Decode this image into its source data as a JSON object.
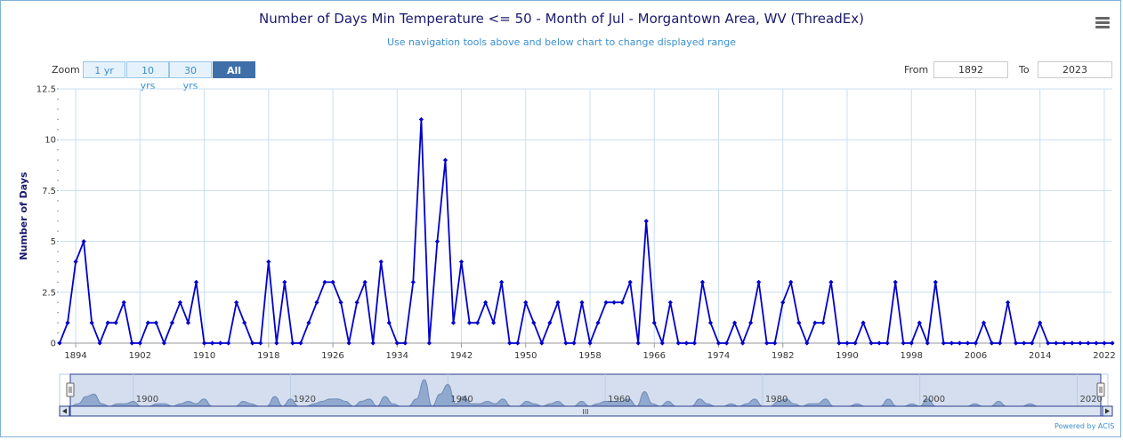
{
  "chart_data": {
    "type": "line",
    "title": "Number of Days Min Temperature <= 50 - Month of Jul - Morgantown Area, WV (ThreadEx)",
    "subtitle": "Use navigation tools above and below chart to change displayed range",
    "xlabel": "",
    "ylabel": "Number of Days",
    "ylim": [
      0,
      12.5
    ],
    "xlim": [
      1892,
      2023
    ],
    "yticks": [
      "0",
      "2.5",
      "5",
      "7.5",
      "10",
      "12.5"
    ],
    "xticks": [
      "1894",
      "1902",
      "1910",
      "1918",
      "1926",
      "1934",
      "1942",
      "1950",
      "1958",
      "1966",
      "1974",
      "1982",
      "1990",
      "1998",
      "2006",
      "2014",
      "2022"
    ],
    "grid": true,
    "color": "#0000cc",
    "x": [
      1892,
      1893,
      1894,
      1895,
      1896,
      1897,
      1898,
      1899,
      1900,
      1901,
      1902,
      1903,
      1904,
      1905,
      1906,
      1907,
      1908,
      1909,
      1910,
      1911,
      1912,
      1913,
      1914,
      1915,
      1916,
      1917,
      1918,
      1919,
      1920,
      1921,
      1922,
      1923,
      1924,
      1925,
      1926,
      1927,
      1928,
      1929,
      1930,
      1931,
      1932,
      1933,
      1934,
      1935,
      1936,
      1937,
      1938,
      1939,
      1940,
      1941,
      1942,
      1943,
      1944,
      1945,
      1946,
      1947,
      1948,
      1949,
      1950,
      1951,
      1952,
      1953,
      1954,
      1955,
      1956,
      1957,
      1958,
      1959,
      1960,
      1961,
      1962,
      1963,
      1964,
      1965,
      1966,
      1967,
      1968,
      1969,
      1970,
      1971,
      1972,
      1973,
      1974,
      1975,
      1976,
      1977,
      1978,
      1979,
      1980,
      1981,
      1982,
      1983,
      1984,
      1985,
      1986,
      1987,
      1988,
      1989,
      1990,
      1991,
      1992,
      1993,
      1994,
      1995,
      1996,
      1997,
      1998,
      1999,
      2000,
      2001,
      2002,
      2003,
      2004,
      2005,
      2006,
      2007,
      2008,
      2009,
      2010,
      2011,
      2012,
      2013,
      2014,
      2015,
      2016,
      2017,
      2018,
      2019,
      2020,
      2021,
      2022,
      2023
    ],
    "values": [
      0,
      1,
      4,
      5,
      1,
      0,
      1,
      1,
      2,
      0,
      0,
      1,
      1,
      0,
      1,
      2,
      1,
      3,
      0,
      0,
      0,
      0,
      2,
      1,
      0,
      0,
      4,
      0,
      3,
      0,
      0,
      1,
      2,
      3,
      3,
      2,
      0,
      2,
      3,
      0,
      4,
      1,
      0,
      0,
      3,
      11,
      0,
      5,
      9,
      1,
      4,
      1,
      1,
      2,
      1,
      3,
      0,
      0,
      2,
      1,
      0,
      1,
      2,
      0,
      0,
      2,
      0,
      1,
      2,
      2,
      2,
      3,
      0,
      6,
      1,
      0,
      2,
      0,
      0,
      0,
      3,
      1,
      0,
      0,
      1,
      0,
      1,
      3,
      0,
      0,
      2,
      3,
      1,
      0,
      1,
      1,
      3,
      0,
      0,
      0,
      1,
      0,
      0,
      0,
      3,
      0,
      0,
      1,
      0,
      3,
      0,
      0,
      0,
      0,
      0,
      1,
      0,
      0,
      2,
      0,
      0,
      0,
      1,
      0,
      0,
      0,
      0,
      0,
      0,
      0,
      0,
      0
    ],
    "navigator_ticks": [
      "1900",
      "1920",
      "1940",
      "1960",
      "1980",
      "2000",
      "2020"
    ]
  },
  "zoom": {
    "label": "Zoom",
    "buttons": [
      "1 yr",
      "10 yrs",
      "30 yrs",
      "All"
    ],
    "active": "All"
  },
  "range": {
    "from_label": "From",
    "from_value": "1892",
    "to_label": "To",
    "to_value": "2023"
  },
  "credit": "Powered by ACIS",
  "menu_icon": "hamburger-menu-icon",
  "scrollbar_grip": "III"
}
